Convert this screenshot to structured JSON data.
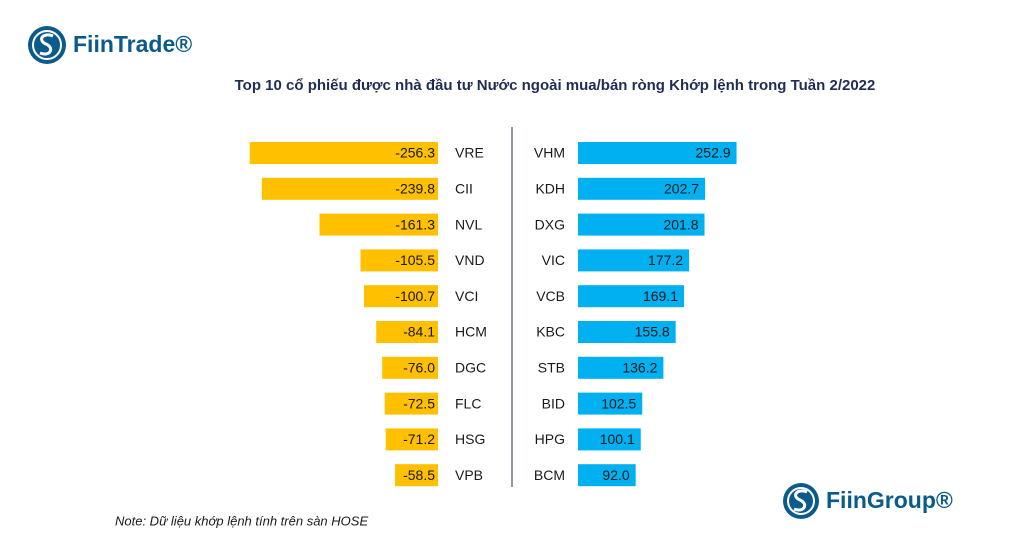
{
  "brand_left": "FiinTrade®",
  "brand_right": "FiinGroup®",
  "note": "Note: Dữ liệu khớp lệnh tính trên sàn HOSE",
  "chart_data": [
    {
      "type": "bar",
      "orientation": "horizontal",
      "title": "Top 10 cổ phiếu được nhà đầu tư Nước ngoài mua/bán ròng Khớp lệnh trong Tuần 2/2022",
      "categories": [
        "VRE",
        "CII",
        "NVL",
        "VND",
        "VCI",
        "HCM",
        "DGC",
        "FLC",
        "HSG",
        "VPB"
      ],
      "values": [
        -256.3,
        -239.8,
        -161.3,
        -105.5,
        -100.7,
        -84.1,
        -76.0,
        -72.5,
        -71.2,
        -58.5
      ],
      "value_labels": [
        "-256.3",
        "-239.8",
        "-161.3",
        "-105.5",
        "-100.7",
        "-84.1",
        "-76.0",
        "-72.5",
        "-71.2",
        "-58.5"
      ],
      "color": "#FFC000",
      "xlim": [
        -260,
        0
      ]
    },
    {
      "type": "bar",
      "orientation": "horizontal",
      "categories": [
        "VHM",
        "KDH",
        "DXG",
        "VIC",
        "VCB",
        "KBC",
        "STB",
        "BID",
        "HPG",
        "BCM"
      ],
      "values": [
        252.9,
        202.7,
        201.8,
        177.2,
        169.1,
        155.8,
        136.2,
        102.5,
        100.1,
        92.0
      ],
      "value_labels": [
        "252.9",
        "202.7",
        "201.8",
        "177.2",
        "169.1",
        "155.8",
        "136.2",
        "102.5",
        "100.1",
        "92.0"
      ],
      "color": "#00B0F0",
      "xlim": [
        0,
        260
      ]
    }
  ]
}
